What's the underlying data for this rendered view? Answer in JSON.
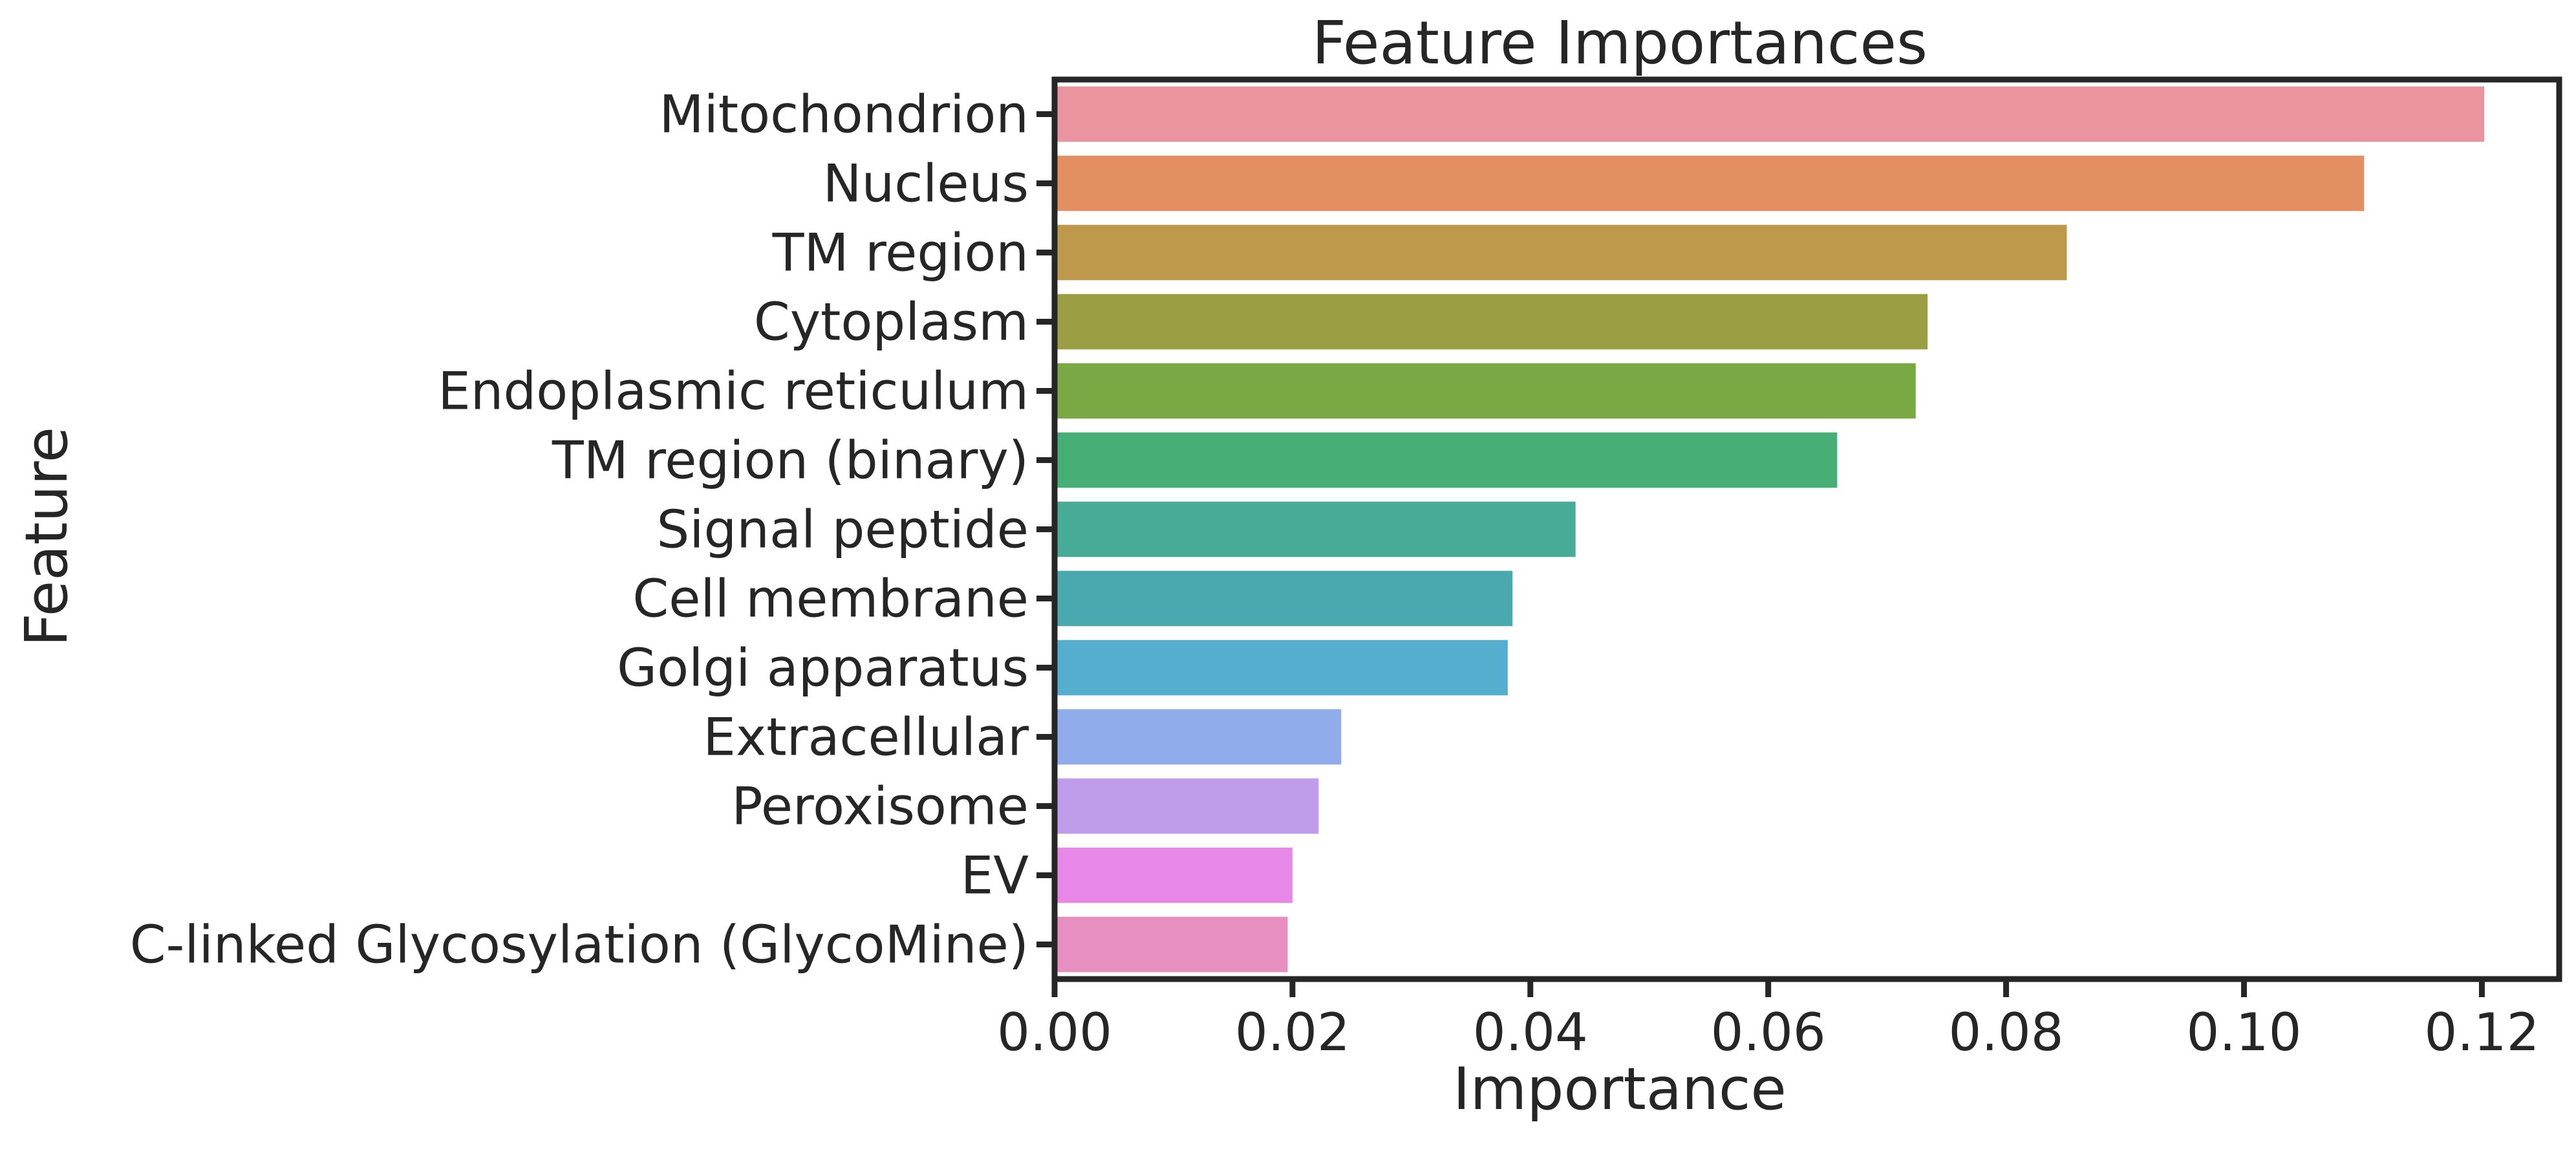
{
  "chart_data": {
    "type": "bar",
    "orientation": "horizontal",
    "title": "Feature Importances",
    "xlabel": "Importance",
    "ylabel": "Feature",
    "xlim": [
      0,
      0.1265
    ],
    "xticks": [
      "0.00",
      "0.02",
      "0.04",
      "0.06",
      "0.08",
      "0.10",
      "0.12"
    ],
    "grid": false,
    "legend": "none",
    "categories": [
      "Mitochondrion",
      "Nucleus",
      "TM region",
      "Cytoplasm",
      "Endoplasmic reticulum",
      "TM region (binary)",
      "Signal peptide",
      "Cell membrane",
      "Golgi apparatus",
      "Extracellular",
      "Peroxisome",
      "EV",
      "C-linked Glycosylation (GlycoMine)"
    ],
    "values": [
      0.1202,
      0.1101,
      0.0851,
      0.0734,
      0.0724,
      0.0658,
      0.0438,
      0.0385,
      0.0381,
      0.0241,
      0.0222,
      0.02,
      0.0196
    ],
    "colors": [
      "#e9949f",
      "#e48f61",
      "#bf994b",
      "#9c9e43",
      "#79a844",
      "#47ae76",
      "#47ab97",
      "#49a9ae",
      "#55aecd",
      "#90acea",
      "#c09deb",
      "#e787e8",
      "#e88fc2"
    ]
  }
}
